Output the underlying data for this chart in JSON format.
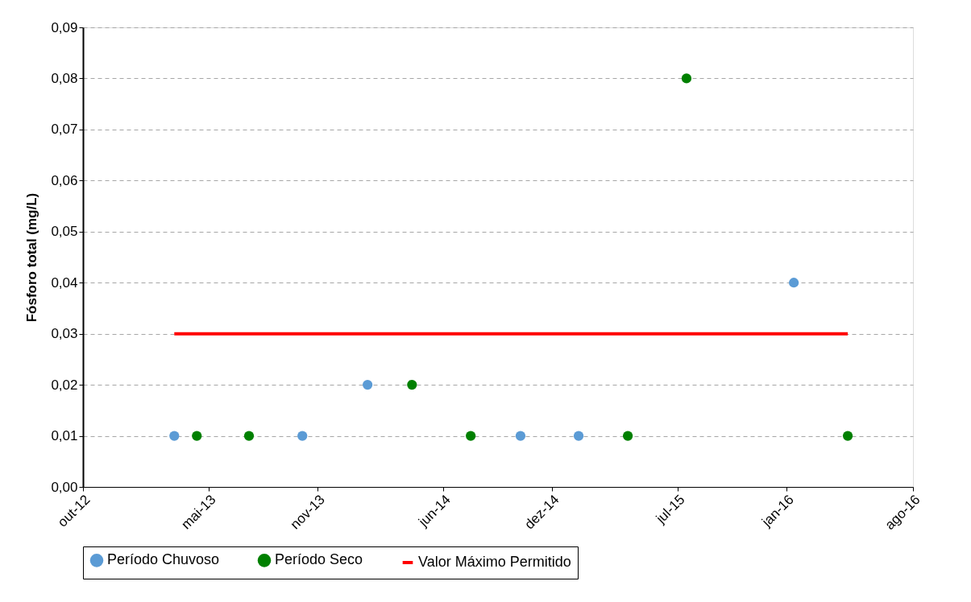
{
  "chart_data": {
    "type": "scatter",
    "ylabel": "Fósforo total (mg/L)",
    "series": [
      {
        "name": "Período Chuvoso",
        "color": "#5b9bd5",
        "marker": "circle",
        "x": [
          "2013-03-04",
          "2013-10-06",
          "2014-01-24",
          "2014-10-09",
          "2015-01-15",
          "2016-01-13"
        ],
        "values": [
          0.01,
          0.01,
          0.02,
          0.01,
          0.01,
          0.04
        ]
      },
      {
        "name": "Período Seco",
        "color": "#008000",
        "marker": "circle",
        "x": [
          "2013-04-11",
          "2013-07-08",
          "2014-04-09",
          "2014-07-17",
          "2015-04-08",
          "2015-07-16",
          "2016-04-13"
        ],
        "values": [
          0.01,
          0.01,
          0.02,
          0.01,
          0.01,
          0.08,
          0.01
        ]
      },
      {
        "name": "Valor Máximo Permitido",
        "type": "line",
        "color": "#ff0000",
        "x": [
          "2013-03-04",
          "2016-04-13"
        ],
        "values": [
          0.03,
          0.03
        ]
      }
    ],
    "xlim": [
      "2012-10-01",
      "2016-08-01"
    ],
    "xticks": [
      {
        "value": "2012-10-01",
        "label": "out-12"
      },
      {
        "value": "2013-05-01",
        "label": "mai-13"
      },
      {
        "value": "2013-11-01",
        "label": "nov-13"
      },
      {
        "value": "2014-06-01",
        "label": "jun-14"
      },
      {
        "value": "2014-12-01",
        "label": "dez-14"
      },
      {
        "value": "2015-07-01",
        "label": "jul-15"
      },
      {
        "value": "2016-01-01",
        "label": "jan-16"
      },
      {
        "value": "2016-08-01",
        "label": "ago-16"
      }
    ],
    "ylim": [
      0,
      0.09
    ],
    "yticks": [
      {
        "value": 0,
        "label": "0,00"
      },
      {
        "value": 0.01,
        "label": "0,01"
      },
      {
        "value": 0.02,
        "label": "0,02"
      },
      {
        "value": 0.03,
        "label": "0,03"
      },
      {
        "value": 0.04,
        "label": "0,04"
      },
      {
        "value": 0.05,
        "label": "0,05"
      },
      {
        "value": 0.06,
        "label": "0,06"
      },
      {
        "value": 0.07,
        "label": "0,07"
      },
      {
        "value": 0.08,
        "label": "0,08"
      },
      {
        "value": 0.09,
        "label": "0,09"
      }
    ],
    "grid": "y",
    "legend": "bottom"
  }
}
